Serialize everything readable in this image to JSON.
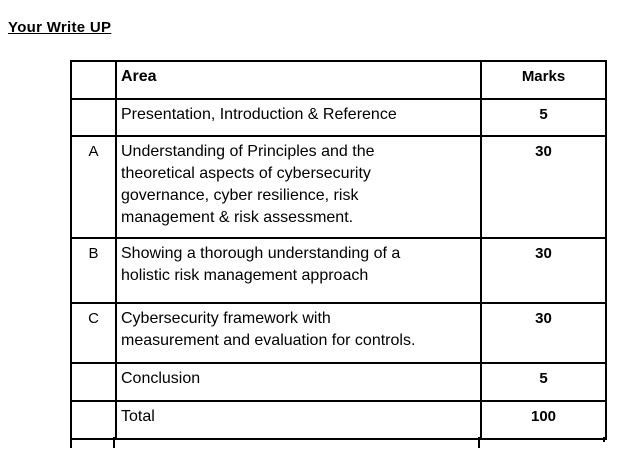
{
  "heading": "Your Write UP",
  "table": {
    "header": {
      "area": "Area",
      "marks": "Marks"
    },
    "rows": [
      {
        "label": "",
        "area": "Presentation, Introduction & Reference",
        "marks": "5"
      },
      {
        "label": "A",
        "area": "Understanding of Principles and the\ntheoretical aspects of cybersecurity\ngovernance, cyber resilience, risk\nmanagement & risk assessment.",
        "marks": "30"
      },
      {
        "label": "B",
        "area": "Showing a thorough understanding of a\nholistic risk management approach",
        "marks": "30"
      },
      {
        "label": "C",
        "area": "Cybersecurity framework with\nmeasurement and evaluation for controls.",
        "marks": "30"
      },
      {
        "label": "",
        "area": "Conclusion",
        "marks": "5"
      },
      {
        "label": "",
        "area": "Total",
        "marks": "100"
      }
    ],
    "border_color": "#000000",
    "text_color": "#000000",
    "background_color": "#ffffff"
  }
}
